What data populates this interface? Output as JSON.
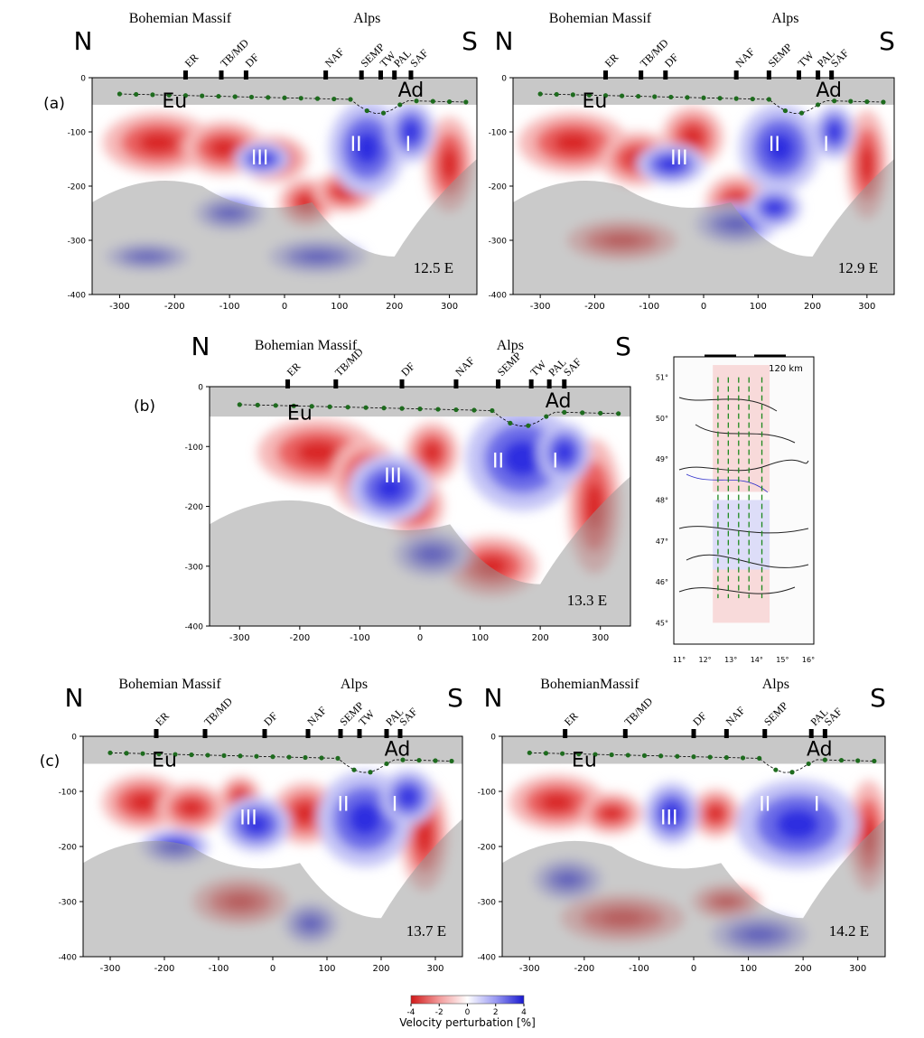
{
  "panels": [
    {
      "id": "a1",
      "label": "(a)",
      "longitude": "12.5 E",
      "has_groups": true,
      "group_left": "Bohemian Massif",
      "group_right": "Alps",
      "north": "N",
      "south": "S",
      "units": {
        "Eu": "Eu",
        "Ad": "Ad",
        "I": "I",
        "II": "II",
        "III": "III"
      },
      "faults": [
        {
          "name": "ER",
          "x": -180
        },
        {
          "name": "TB/MD",
          "x": -115
        },
        {
          "name": "DF",
          "x": -70
        },
        {
          "name": "NAF",
          "x": 75
        },
        {
          "name": "SEMP",
          "x": 140
        },
        {
          "name": "TW",
          "x": 175
        },
        {
          "name": "PAL",
          "x": 200
        },
        {
          "name": "SAF",
          "x": 230
        }
      ]
    },
    {
      "id": "a2",
      "label": "",
      "longitude": "12.9 E",
      "has_groups": true,
      "group_left": "Bohemian Massif",
      "group_right": "Alps",
      "north": "N",
      "south": "S",
      "units": {
        "Eu": "Eu",
        "Ad": "Ad",
        "I": "I",
        "II": "II",
        "III": "III"
      },
      "faults": [
        {
          "name": "ER",
          "x": -180
        },
        {
          "name": "TB/MD",
          "x": -115
        },
        {
          "name": "DF",
          "x": -70
        },
        {
          "name": "NAF",
          "x": 60
        },
        {
          "name": "SEMP",
          "x": 120
        },
        {
          "name": "TW",
          "x": 175
        },
        {
          "name": "PAL",
          "x": 210
        },
        {
          "name": "SAF",
          "x": 235
        }
      ]
    },
    {
      "id": "b",
      "label": "(b)",
      "longitude": "13.3 E",
      "has_groups": true,
      "group_left": "Bohemian Massif",
      "group_right": "Alps",
      "north": "N",
      "south": "S",
      "units": {
        "Eu": "Eu",
        "Ad": "Ad",
        "I": "I",
        "II": "II",
        "III": "III"
      },
      "faults": [
        {
          "name": "ER",
          "x": -220
        },
        {
          "name": "TB/MD",
          "x": -140
        },
        {
          "name": "DF",
          "x": -30
        },
        {
          "name": "NAF",
          "x": 60
        },
        {
          "name": "SEMP",
          "x": 130
        },
        {
          "name": "TW",
          "x": 185
        },
        {
          "name": "PAL",
          "x": 215
        },
        {
          "name": "SAF",
          "x": 240
        }
      ]
    },
    {
      "id": "c1",
      "label": "(c)",
      "longitude": "13.7 E",
      "has_groups": true,
      "group_left": "Bohemian Massif",
      "group_right": "Alps",
      "north": "N",
      "south": "S",
      "units": {
        "Eu": "Eu",
        "Ad": "Ad",
        "I": "I",
        "II": "II",
        "III": "III"
      },
      "faults": [
        {
          "name": "ER",
          "x": -215
        },
        {
          "name": "TB/MD",
          "x": -125
        },
        {
          "name": "DF",
          "x": -15
        },
        {
          "name": "NAF",
          "x": 65
        },
        {
          "name": "SEMP",
          "x": 125
        },
        {
          "name": "TW",
          "x": 160
        },
        {
          "name": "PAL",
          "x": 210
        },
        {
          "name": "SAF",
          "x": 235
        }
      ]
    },
    {
      "id": "c2",
      "label": "",
      "longitude": "14.2 E",
      "has_groups": true,
      "group_left": "BohemianMassif",
      "group_right": "Alps",
      "north": "N",
      "south": "S",
      "units": {
        "Eu": "Eu",
        "Ad": "Ad",
        "I": "I",
        "II": "II",
        "III": "III"
      },
      "faults": [
        {
          "name": "ER",
          "x": -235
        },
        {
          "name": "TB/MD",
          "x": -125
        },
        {
          "name": "DF",
          "x": 0
        },
        {
          "name": "NAF",
          "x": 60
        },
        {
          "name": "SEMP",
          "x": 130
        },
        {
          "name": "PAL",
          "x": 215
        },
        {
          "name": "SAF",
          "x": 240
        }
      ]
    }
  ],
  "axes": {
    "x_ticks": [
      "-300",
      "-200",
      "-100",
      "0",
      "100",
      "200",
      "300"
    ],
    "x_tick_values": [
      -300,
      -200,
      -100,
      0,
      100,
      200,
      300
    ],
    "y_ticks": [
      "0",
      "-100",
      "-200",
      "-300",
      "-400"
    ],
    "y_tick_values": [
      0,
      -100,
      -200,
      -300,
      -400
    ],
    "x_range_km": [
      -350,
      350
    ],
    "y_range_km": [
      0,
      -400
    ]
  },
  "colorbar": {
    "label": "Velocity perturbation [%]",
    "ticks": [
      "-4",
      "-2",
      "0",
      "2",
      "4"
    ],
    "range": [
      -4,
      4
    ],
    "colors": {
      "negative": "#e83a3a",
      "zero": "#ffffff",
      "positive": "#3a3ae8"
    }
  },
  "map": {
    "scale_label": "120 km",
    "lat_labels": [
      "51°",
      "50°",
      "49°",
      "48°",
      "47°",
      "46°",
      "45°"
    ],
    "lon_labels": [
      "11°",
      "12°",
      "13°",
      "14°",
      "15°",
      "16°"
    ],
    "lat_values": [
      51,
      50,
      49,
      48,
      47,
      46,
      45
    ],
    "lon_values": [
      11,
      12,
      13,
      14,
      15,
      16
    ],
    "profile_longitudes": [
      12.5,
      12.9,
      13.3,
      13.7,
      14.2
    ]
  }
}
